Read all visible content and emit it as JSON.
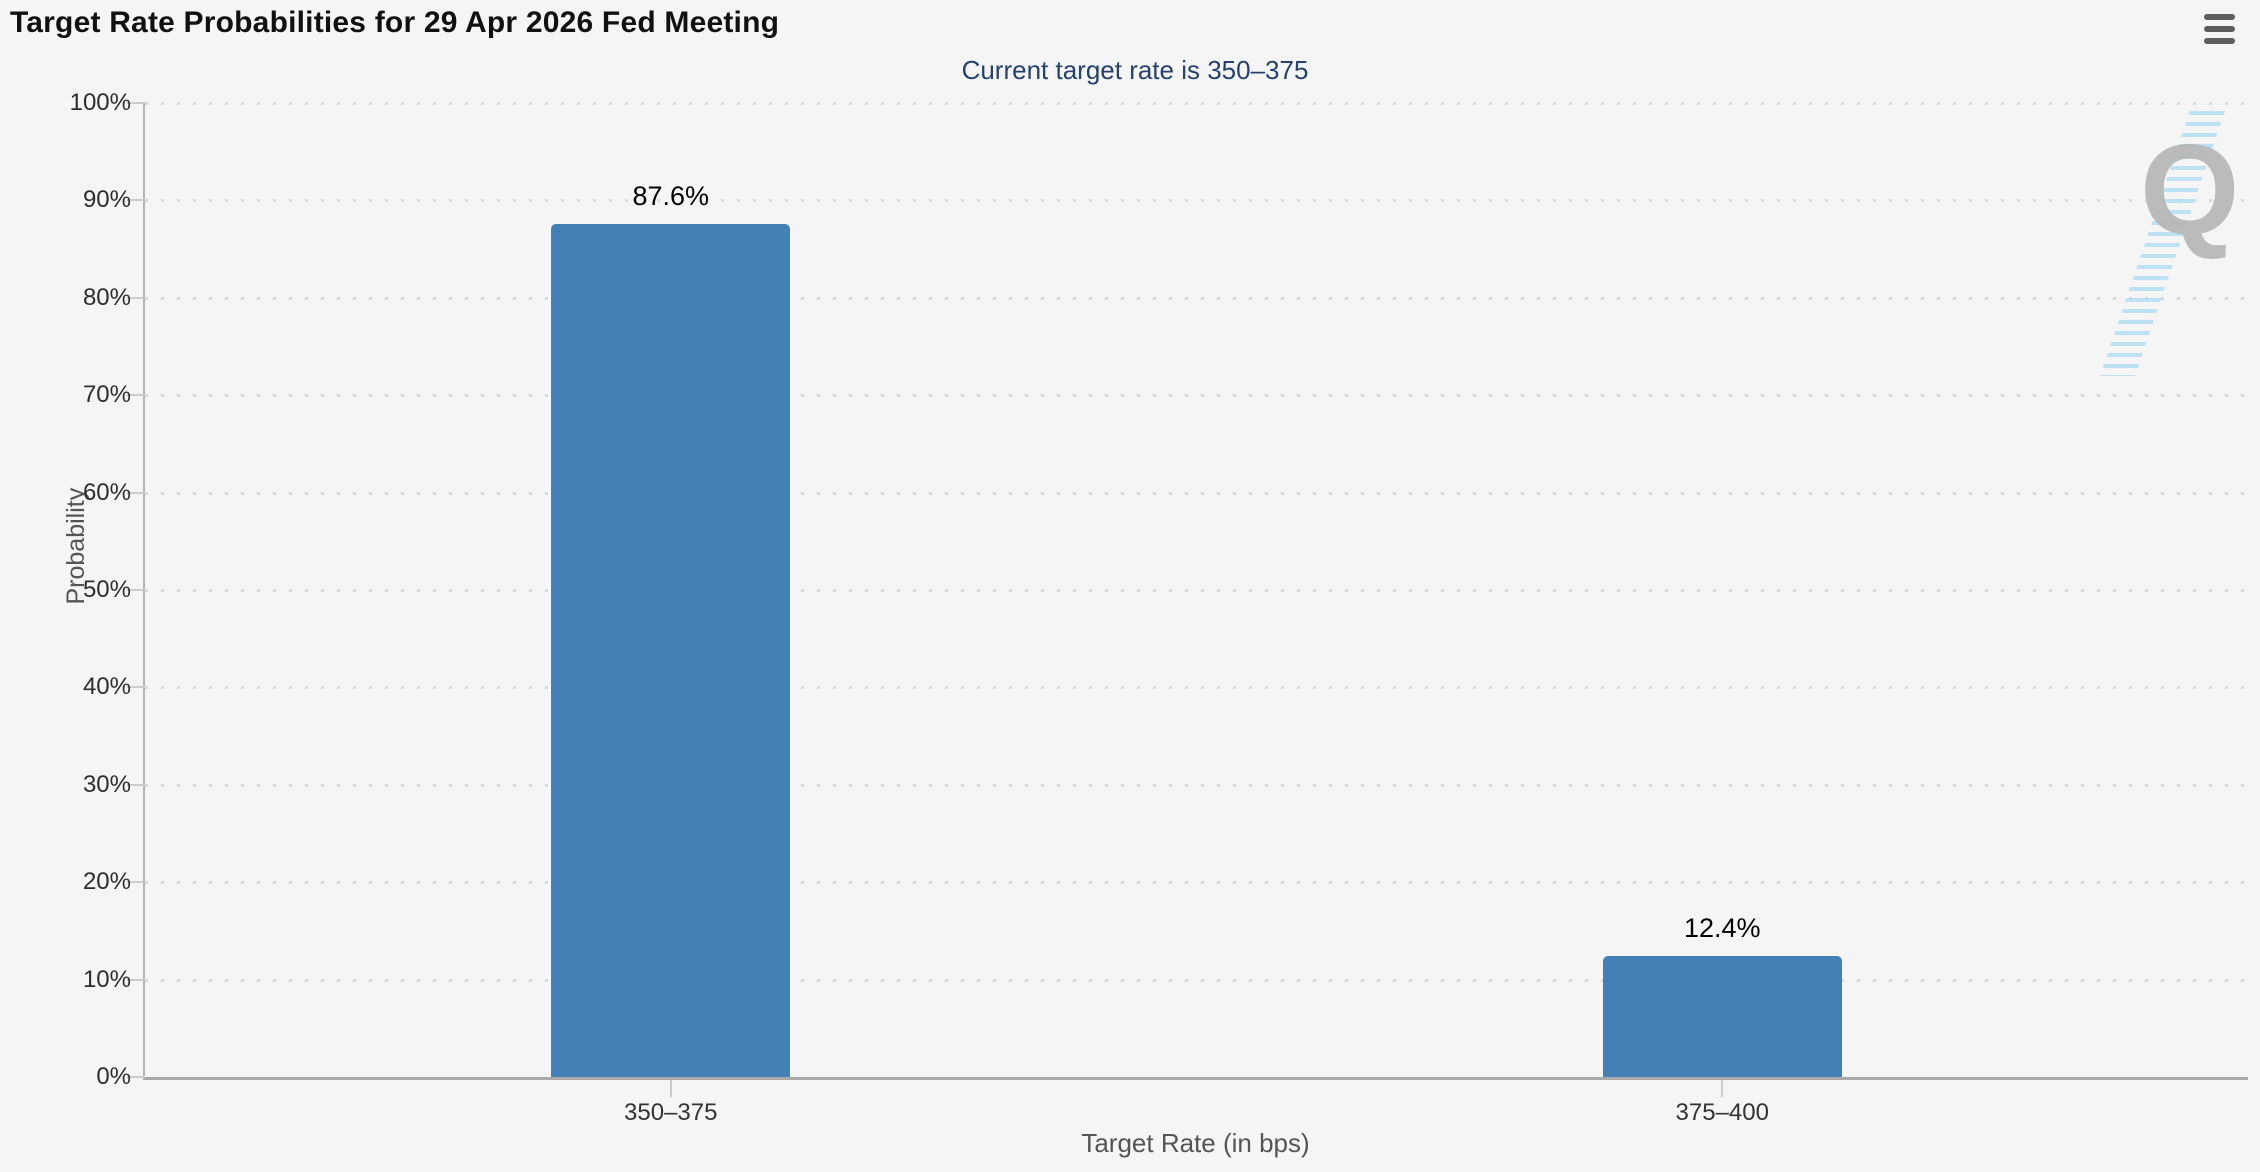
{
  "header": {
    "menu_icon": "hamburger-menu"
  },
  "watermark": {
    "letter": "Q"
  },
  "chart_data": {
    "type": "bar",
    "title": "Target Rate Probabilities for 29 Apr 2026 Fed Meeting",
    "subtitle": "Current target rate is 350–375",
    "categories": [
      "350–375",
      "375–400"
    ],
    "values": [
      87.6,
      12.4
    ],
    "value_labels": [
      "87.6%",
      "12.4%"
    ],
    "xlabel": "Target Rate (in bps)",
    "ylabel": "Probability",
    "ylim": [
      0,
      100
    ],
    "yticks": [
      "0%",
      "10%",
      "20%",
      "30%",
      "40%",
      "50%",
      "60%",
      "70%",
      "80%",
      "90%",
      "100%"
    ],
    "grid": "dotted-horizontal",
    "legend": "none",
    "colors": {
      "bar": "#4280b5",
      "subtitle_text": "#25416e",
      "background": "#f5f5f6",
      "gridline": "#d9d9da"
    }
  }
}
